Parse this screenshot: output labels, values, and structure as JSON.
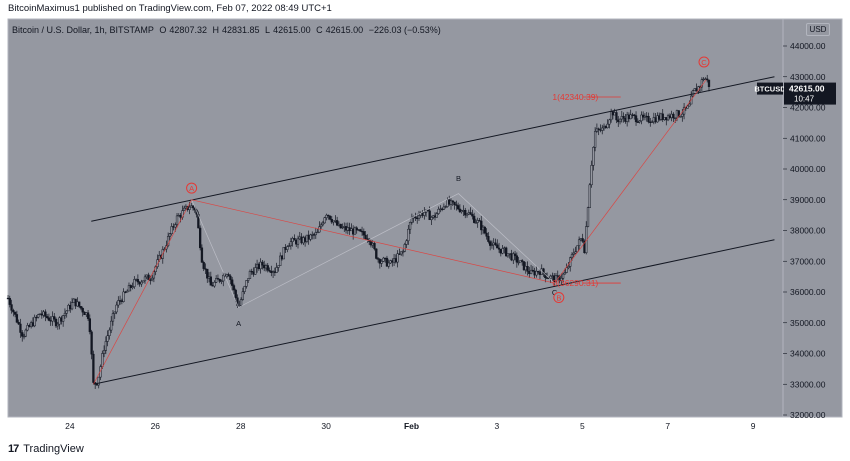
{
  "header": {
    "author": "BitcoinMaximus1",
    "published_text": "published on TradingView.com, Feb 07, 2022 08:49 UTC+1"
  },
  "legend": {
    "symbol_desc": "Bitcoin / U.S. Dollar, 1h, BITSTAMP",
    "o_label": "O",
    "o_value": "42807.32",
    "h_label": "H",
    "h_value": "42831.85",
    "l_label": "L",
    "l_value": "42615.00",
    "c_label": "C",
    "c_value": "42615.00",
    "change": "−226.03 (−0.53%)"
  },
  "currency": "USD",
  "price_tag": {
    "symbol": "BTCUSD",
    "price": "42615.00",
    "countdown": "10:47"
  },
  "footer": {
    "brand": "TradingView",
    "logo": "17"
  },
  "colors": {
    "plot_bg": "#9598a1",
    "candle": "#131722",
    "channel": "#131722",
    "wave_red": "#e53935",
    "axis_text": "#131722"
  },
  "chart_data": {
    "type": "candlestick",
    "symbol": "BTCUSD",
    "interval": "1h",
    "exchange": "BITSTAMP",
    "ylim": [
      32000,
      45000
    ],
    "y_ticks": [
      32000,
      33000,
      34000,
      35000,
      36000,
      37000,
      38000,
      39000,
      40000,
      41000,
      42000,
      43000,
      44000
    ],
    "y_tick_labels": [
      "32000.00",
      "33000.00",
      "34000.00",
      "35000.00",
      "36000.00",
      "37000.00",
      "38000.00",
      "39000.00",
      "40000.00",
      "41000.00",
      "42000.00",
      "43000.00",
      "44000.00"
    ],
    "x_ticks": [
      "24",
      "26",
      "28",
      "30",
      "Feb",
      "3",
      "5",
      "7",
      "9"
    ],
    "x_tick_days": [
      24,
      26,
      28,
      30,
      32,
      34,
      36,
      38,
      40
    ],
    "xlim_days": [
      22.55,
      40.7
    ],
    "price_path": [
      [
        22.55,
        35800
      ],
      [
        22.9,
        34600
      ],
      [
        23.3,
        35300
      ],
      [
        23.7,
        35000
      ],
      [
        24.1,
        35700
      ],
      [
        24.45,
        35200
      ],
      [
        24.55,
        33000
      ],
      [
        24.65,
        33100
      ],
      [
        24.8,
        34200
      ],
      [
        25.1,
        35600
      ],
      [
        25.5,
        36300
      ],
      [
        25.9,
        36500
      ],
      [
        26.2,
        37400
      ],
      [
        26.5,
        38400
      ],
      [
        26.8,
        38800
      ],
      [
        26.95,
        38700
      ],
      [
        27.1,
        37000
      ],
      [
        27.3,
        36200
      ],
      [
        27.5,
        36400
      ],
      [
        27.7,
        36700
      ],
      [
        27.95,
        35500
      ],
      [
        28.2,
        36600
      ],
      [
        28.5,
        36900
      ],
      [
        28.8,
        36700
      ],
      [
        29.1,
        37600
      ],
      [
        29.5,
        37700
      ],
      [
        29.8,
        37900
      ],
      [
        30.0,
        38600
      ],
      [
        30.3,
        38100
      ],
      [
        30.6,
        38000
      ],
      [
        31.0,
        37800
      ],
      [
        31.2,
        37100
      ],
      [
        31.5,
        36900
      ],
      [
        31.8,
        37300
      ],
      [
        32.0,
        38400
      ],
      [
        32.3,
        38600
      ],
      [
        32.5,
        38400
      ],
      [
        32.8,
        38900
      ],
      [
        33.0,
        38800
      ],
      [
        33.3,
        38600
      ],
      [
        33.6,
        38200
      ],
      [
        33.9,
        37500
      ],
      [
        34.2,
        37300
      ],
      [
        34.5,
        37000
      ],
      [
        34.8,
        36600
      ],
      [
        35.0,
        36700
      ],
      [
        35.2,
        36500
      ],
      [
        35.4,
        36400
      ],
      [
        35.6,
        36600
      ],
      [
        35.8,
        37300
      ],
      [
        36.0,
        37800
      ],
      [
        36.05,
        37400
      ],
      [
        36.2,
        40000
      ],
      [
        36.3,
        41200
      ],
      [
        36.5,
        41300
      ],
      [
        36.7,
        41900
      ],
      [
        36.8,
        41600
      ],
      [
        37.1,
        41700
      ],
      [
        37.5,
        41600
      ],
      [
        37.9,
        41700
      ],
      [
        38.3,
        41800
      ],
      [
        38.5,
        42000
      ],
      [
        38.6,
        42500
      ],
      [
        38.75,
        42700
      ],
      [
        38.85,
        43000
      ],
      [
        38.95,
        42800
      ],
      [
        39.0,
        42615
      ]
    ],
    "channel_upper": [
      [
        24.5,
        38300
      ],
      [
        40.5,
        43000
      ]
    ],
    "channel_lower": [
      [
        24.55,
        33000
      ],
      [
        40.5,
        37700
      ]
    ],
    "wave_lines_red": [
      [
        [
          24.55,
          33000
        ],
        [
          26.85,
          39000
        ],
        [
          35.35,
          36290
        ],
        [
          38.9,
          42900
        ]
      ]
    ],
    "wave_lines_faint": [
      [
        [
          26.85,
          39000
        ],
        [
          27.95,
          35500
        ],
        [
          33.1,
          39200
        ],
        [
          35.35,
          36290
        ]
      ]
    ],
    "labels": [
      {
        "text": "A",
        "style": "circle-red",
        "day": 26.85,
        "price": 39380
      },
      {
        "text": "A",
        "style": "plain",
        "day": 27.95,
        "price": 35000
      },
      {
        "text": "B",
        "style": "plain",
        "day": 33.1,
        "price": 39700
      },
      {
        "text": "C",
        "style": "plain",
        "day": 35.35,
        "price": 36000
      },
      {
        "text": "B",
        "style": "circle-red",
        "day": 35.45,
        "price": 35820
      },
      {
        "text": "C",
        "style": "circle-red",
        "day": 38.85,
        "price": 43480
      }
    ],
    "fib_levels": [
      {
        "text": "1(42340.39)",
        "price": 42340.39,
        "day_start": 35.3,
        "day_end": 36.9
      },
      {
        "text": "0(36290.31)",
        "price": 36290.31,
        "day_start": 35.3,
        "day_end": 36.9
      }
    ],
    "last_price": 42615.0
  }
}
